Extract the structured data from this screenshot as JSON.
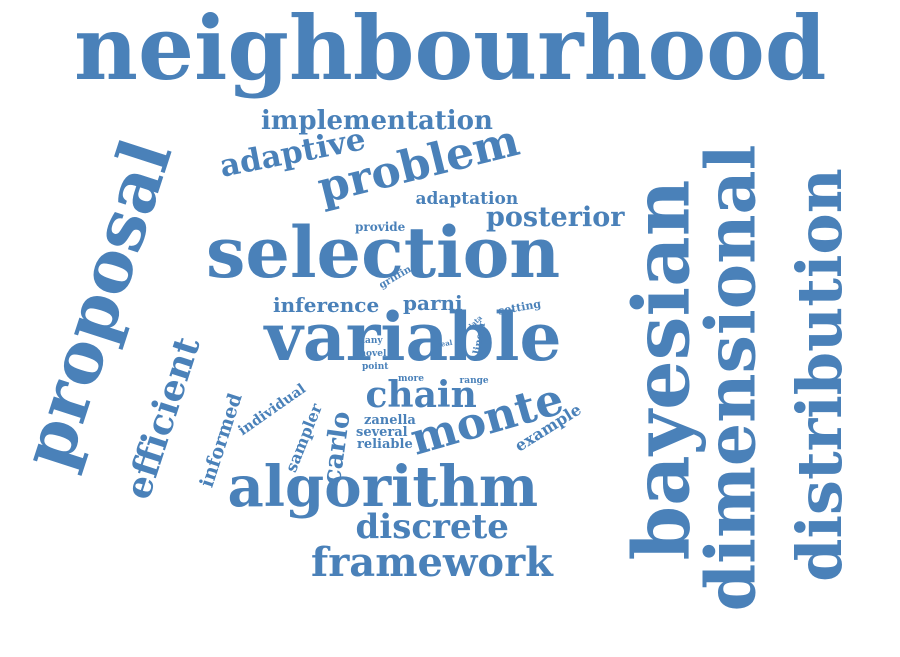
{
  "color": "#4a81b9",
  "words": [
    {
      "id": "neighbourhood",
      "text": "neighbourhood",
      "rotation": "horizontal"
    },
    {
      "id": "selection",
      "text": "selection",
      "rotation": "horizontal"
    },
    {
      "id": "variable",
      "text": "variable",
      "rotation": "horizontal"
    },
    {
      "id": "algorithm",
      "text": "algorithm",
      "rotation": "horizontal"
    },
    {
      "id": "bayesian",
      "text": "bayesian",
      "rotation": "vertical"
    },
    {
      "id": "dimensional",
      "text": "dimensional",
      "rotation": "vertical"
    },
    {
      "id": "distribution",
      "text": "distribution",
      "rotation": "vertical"
    },
    {
      "id": "proposal",
      "text": "proposal",
      "rotation": "vertical"
    },
    {
      "id": "framework",
      "text": "framework",
      "rotation": "horizontal"
    },
    {
      "id": "discrete",
      "text": "discrete",
      "rotation": "horizontal"
    },
    {
      "id": "problem",
      "text": "problem",
      "rotation": "angled"
    },
    {
      "id": "monte",
      "text": "monte",
      "rotation": "angled"
    },
    {
      "id": "chain",
      "text": "chain",
      "rotation": "horizontal"
    },
    {
      "id": "efficient",
      "text": "efficient",
      "rotation": "vertical"
    },
    {
      "id": "posterior",
      "text": "posterior",
      "rotation": "horizontal"
    },
    {
      "id": "adaptive",
      "text": "adaptive",
      "rotation": "angled"
    },
    {
      "id": "implementation",
      "text": "implementation",
      "rotation": "horizontal"
    },
    {
      "id": "carlo",
      "text": "carlo",
      "rotation": "vertical"
    },
    {
      "id": "inference",
      "text": "inference",
      "rotation": "horizontal"
    },
    {
      "id": "parni",
      "text": "parni",
      "rotation": "horizontal"
    },
    {
      "id": "informed",
      "text": "informed",
      "rotation": "vertical"
    },
    {
      "id": "sampler",
      "text": "sampler",
      "rotation": "angled"
    },
    {
      "id": "example",
      "text": "example",
      "rotation": "angled"
    },
    {
      "id": "adaptation",
      "text": "adaptation",
      "rotation": "horizontal"
    },
    {
      "id": "individual",
      "text": "individual",
      "rotation": "angled"
    },
    {
      "id": "zanella",
      "text": "zanella",
      "rotation": "horizontal"
    },
    {
      "id": "several",
      "text": "several",
      "rotation": "horizontal"
    },
    {
      "id": "reliable",
      "text": "reliable",
      "rotation": "horizontal"
    },
    {
      "id": "provide",
      "text": "provide",
      "rotation": "horizontal"
    },
    {
      "id": "griffin",
      "text": "griffin",
      "rotation": "angled"
    },
    {
      "id": "setting",
      "text": "setting",
      "rotation": "angled"
    },
    {
      "id": "many",
      "text": "many",
      "rotation": "horizontal"
    },
    {
      "id": "novel",
      "text": "novel",
      "rotation": "horizontal"
    },
    {
      "id": "point",
      "text": "point",
      "rotation": "horizontal"
    },
    {
      "id": "more",
      "text": "more",
      "rotation": "horizontal"
    },
    {
      "id": "range",
      "text": "range",
      "rotation": "horizontal"
    },
    {
      "id": "real",
      "text": "real",
      "rotation": "angled"
    },
    {
      "id": "linear",
      "text": "linear",
      "rotation": "vertical"
    },
    {
      "id": "data",
      "text": "data",
      "rotation": "angled"
    }
  ]
}
